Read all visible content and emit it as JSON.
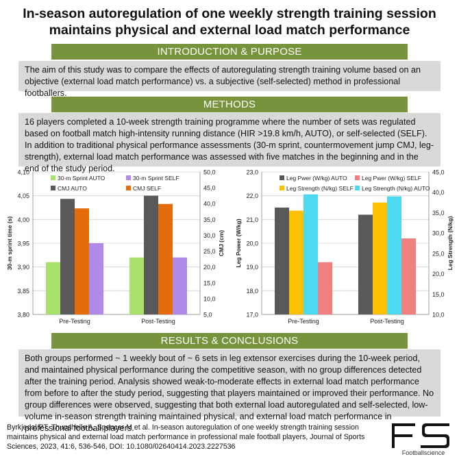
{
  "title": {
    "line1": "In-season autoregulation of one weekly strength training session",
    "line2": "maintains physical and external load match performance"
  },
  "intro": {
    "heading": "INTRODUCTION & PURPOSE",
    "text": "The aim of this study was to compare the effects of autoregulating strength training volume based on an objective (external load match performance) vs. a subjective (self-selected) method in professional footballers."
  },
  "methods": {
    "heading": "METHODS",
    "text": "16 players completed a 10-week strength training programme where the number of sets was regulated based on football match high-intensity running distance (HIR >19.8 km/h, AUTO), or self-selected (SELF). In addition to traditional physical performance assessments (30-m sprint, countermovement jump CMJ, leg-strength), external load match performance was assessed with five matches in the beginning and in the end of the study period."
  },
  "results": {
    "heading": "RESULTS & CONCLUSIONS",
    "text": "Both groups performed ~ 1 weekly bout of ~ 6 sets in leg extensor exercises during the 10-week period, and maintained physical performance during the competitive season, with no group differences detected after the training period. Analysis showed weak-to-moderate effects in external load match performance from before to after the study period, suggesting that players maintained or improved their performance. No group differences were observed, suggesting that both external load autoregulated and self-selected, low-volume in-season strength training maintained physical, and external load match performance in professional football players."
  },
  "citation": "Byrkjedal PT, Thunshelle A, Spencer M et al. In-season autoregulation of one weekly strength training session maintains physical and external load match performance in professional male football players, Journal of Sports Sciences, 2023, 41:6, 536-546, DOI: 10.1080/02640414.2023.2227536",
  "logo": {
    "mark": "FS",
    "text": "Footballscience"
  },
  "chart_data": [
    {
      "type": "bar",
      "categories": [
        "Pre-Testing",
        "Post-Testing"
      ],
      "ylabel": "30-m sprint time (s)",
      "y2label": "CMJ (cm)",
      "ylim": [
        3.8,
        4.1
      ],
      "y2lim": [
        5.0,
        50.0
      ],
      "yticks": [
        "3,80",
        "3,85",
        "3,90",
        "3,95",
        "4,00",
        "4,05",
        "4,10"
      ],
      "y2ticks": [
        "5,0",
        "10,0",
        "15,0",
        "20,0",
        "25,0",
        "30,0",
        "35,0",
        "40,0",
        "45,0",
        "50,0"
      ],
      "legend_position": "top",
      "series": [
        {
          "name": "30-m Sprint AUTO",
          "axis": "left",
          "color": "#a9e26a",
          "values": [
            3.91,
            3.92
          ]
        },
        {
          "name": "CMJ AUTO",
          "axis": "right",
          "color": "#595959",
          "values": [
            41.5,
            42.5
          ]
        },
        {
          "name": "CMJ SELF",
          "axis": "right",
          "color": "#e46c0a",
          "values": [
            38.5,
            39.9
          ]
        },
        {
          "name": "30-m Sprint SELF",
          "axis": "left",
          "color": "#b18ae8",
          "values": [
            3.95,
            3.92
          ]
        }
      ],
      "legend_order": [
        0,
        3,
        1,
        2
      ]
    },
    {
      "type": "bar",
      "categories": [
        "Pre-Testing",
        "Post-Testing"
      ],
      "ylabel": "Leg Power (W/kg)",
      "y2label": "Leg Strength (N/kg)",
      "ylim": [
        17.0,
        23.0
      ],
      "y2lim": [
        10.0,
        45.0
      ],
      "yticks": [
        "17,0",
        "18,0",
        "19,0",
        "20,0",
        "21,0",
        "22,0",
        "23,0"
      ],
      "y2ticks": [
        "10,0",
        "15,0",
        "20,0",
        "25,0",
        "30,0",
        "35,0",
        "40,0",
        "45,0"
      ],
      "legend_position": "top",
      "series": [
        {
          "name": "Leg Pwer (W/kg) AUTO",
          "axis": "left",
          "color": "#595959",
          "values": [
            21.5,
            21.2
          ]
        },
        {
          "name": "Leg Strength (N/kg) SELF",
          "axis": "right",
          "color": "#ffc000",
          "values": [
            35.5,
            37.5
          ]
        },
        {
          "name": "Leg Strength (N/kg) AUTO",
          "axis": "right",
          "color": "#4dd9f0",
          "values": [
            39.5,
            39.0
          ]
        },
        {
          "name": "Leg Pwer (W/kg) SELF",
          "axis": "left",
          "color": "#f08080",
          "values": [
            19.2,
            20.2
          ]
        }
      ],
      "legend_order": [
        0,
        3,
        1,
        2
      ]
    }
  ]
}
